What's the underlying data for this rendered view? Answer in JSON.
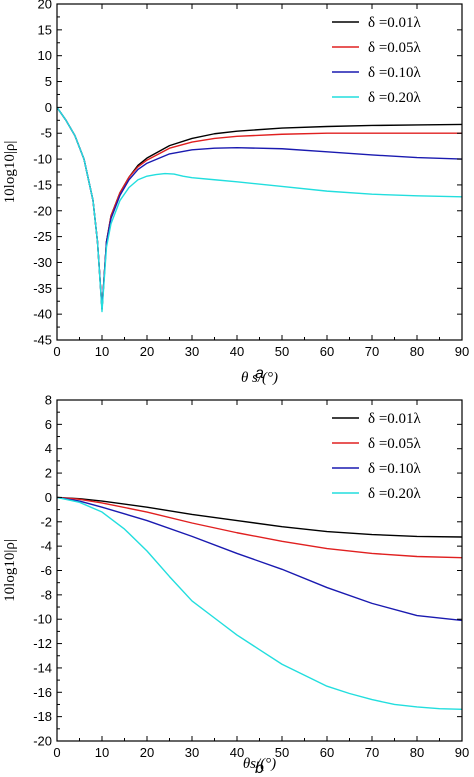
{
  "chart_data": [
    {
      "type": "line",
      "panel_label": "a",
      "xlabel": "θ s/(°)",
      "ylabel": "10log10|ρ|",
      "xlim": [
        0,
        90
      ],
      "ylim": [
        -45,
        20
      ],
      "x_ticks": [
        0,
        10,
        20,
        30,
        40,
        50,
        60,
        70,
        80,
        90
      ],
      "y_ticks": [
        20,
        15,
        10,
        5,
        0,
        -5,
        -10,
        -15,
        -20,
        -25,
        -30,
        -35,
        -40,
        -45
      ],
      "grid": false,
      "legend_position": "top-right",
      "series": [
        {
          "name": "δ =0.01λ",
          "color": "#000000",
          "x": [
            0,
            2,
            4,
            6,
            8,
            9,
            10,
            11,
            12,
            14,
            16,
            18,
            20,
            25,
            30,
            35,
            40,
            50,
            60,
            70,
            80,
            90
          ],
          "y": [
            0,
            -2.5,
            -5.5,
            -10,
            -18,
            -26,
            -39,
            -26,
            -21,
            -16.5,
            -13.5,
            -11.2,
            -9.8,
            -7.4,
            -6,
            -5.1,
            -4.6,
            -4,
            -3.7,
            -3.5,
            -3.4,
            -3.3
          ]
        },
        {
          "name": "δ =0.05λ",
          "color": "#e02020",
          "x": [
            0,
            2,
            4,
            6,
            8,
            9,
            10,
            11,
            12,
            14,
            16,
            18,
            20,
            25,
            30,
            35,
            40,
            50,
            60,
            70,
            80,
            90
          ],
          "y": [
            0,
            -2.5,
            -5.5,
            -10,
            -18,
            -26,
            -39,
            -26,
            -21,
            -16.5,
            -13.5,
            -11.5,
            -10.2,
            -7.9,
            -6.7,
            -6,
            -5.6,
            -5.2,
            -5,
            -5,
            -5,
            -5
          ]
        },
        {
          "name": "δ =0.10λ",
          "color": "#1a1ab0",
          "x": [
            0,
            2,
            4,
            6,
            8,
            9,
            10,
            11,
            12,
            14,
            16,
            18,
            20,
            25,
            30,
            35,
            40,
            50,
            60,
            70,
            80,
            90
          ],
          "y": [
            0,
            -2.5,
            -5.5,
            -10,
            -18,
            -26,
            -39,
            -26,
            -21.5,
            -17,
            -14,
            -12,
            -10.8,
            -9,
            -8.2,
            -7.9,
            -7.8,
            -8,
            -8.6,
            -9.2,
            -9.7,
            -10
          ]
        },
        {
          "name": "δ =0.20λ",
          "color": "#22dede",
          "x": [
            0,
            2,
            4,
            6,
            8,
            9,
            10,
            11,
            12,
            14,
            16,
            18,
            20,
            22,
            24,
            26,
            28,
            30,
            35,
            40,
            50,
            60,
            70,
            80,
            90
          ],
          "y": [
            0,
            -2.5,
            -5.5,
            -10,
            -18,
            -26,
            -39.5,
            -27,
            -22.5,
            -18,
            -15.5,
            -14,
            -13.3,
            -13,
            -12.8,
            -12.9,
            -13.3,
            -13.6,
            -14,
            -14.4,
            -15.3,
            -16.2,
            -16.8,
            -17.1,
            -17.3
          ]
        }
      ]
    },
    {
      "type": "line",
      "panel_label": "b",
      "xlabel": "θs/(°)",
      "ylabel": "10log10|ρ|",
      "xlim": [
        0,
        90
      ],
      "ylim": [
        -20,
        8
      ],
      "x_ticks": [
        0,
        10,
        20,
        30,
        40,
        50,
        60,
        70,
        80,
        90
      ],
      "y_ticks": [
        8,
        6,
        4,
        2,
        0,
        -2,
        -4,
        -6,
        -8,
        -10,
        -12,
        -14,
        -16,
        -18,
        -20
      ],
      "grid": false,
      "legend_position": "top-right",
      "series": [
        {
          "name": "δ =0.01λ",
          "color": "#000000",
          "x": [
            0,
            5,
            10,
            20,
            30,
            40,
            50,
            60,
            70,
            80,
            90
          ],
          "y": [
            0,
            -0.1,
            -0.3,
            -0.8,
            -1.4,
            -1.9,
            -2.4,
            -2.8,
            -3.05,
            -3.2,
            -3.25
          ]
        },
        {
          "name": "δ =0.05λ",
          "color": "#e02020",
          "x": [
            0,
            5,
            10,
            20,
            30,
            40,
            50,
            60,
            70,
            80,
            90
          ],
          "y": [
            0,
            -0.15,
            -0.45,
            -1.2,
            -2.1,
            -2.9,
            -3.6,
            -4.2,
            -4.6,
            -4.85,
            -4.95
          ]
        },
        {
          "name": "δ =0.10λ",
          "color": "#1a1ab0",
          "x": [
            0,
            5,
            10,
            20,
            30,
            40,
            50,
            60,
            70,
            80,
            90
          ],
          "y": [
            0,
            -0.3,
            -0.8,
            -1.9,
            -3.2,
            -4.6,
            -5.9,
            -7.4,
            -8.7,
            -9.7,
            -10.1
          ]
        },
        {
          "name": "δ =0.20λ",
          "color": "#22dede",
          "x": [
            0,
            5,
            10,
            15,
            20,
            25,
            30,
            35,
            40,
            45,
            50,
            55,
            60,
            65,
            70,
            75,
            80,
            85,
            90
          ],
          "y": [
            0,
            -0.4,
            -1.2,
            -2.6,
            -4.4,
            -6.5,
            -8.5,
            -9.9,
            -11.3,
            -12.5,
            -13.7,
            -14.6,
            -15.5,
            -16.1,
            -16.6,
            -17,
            -17.2,
            -17.35,
            -17.4
          ]
        }
      ]
    }
  ]
}
